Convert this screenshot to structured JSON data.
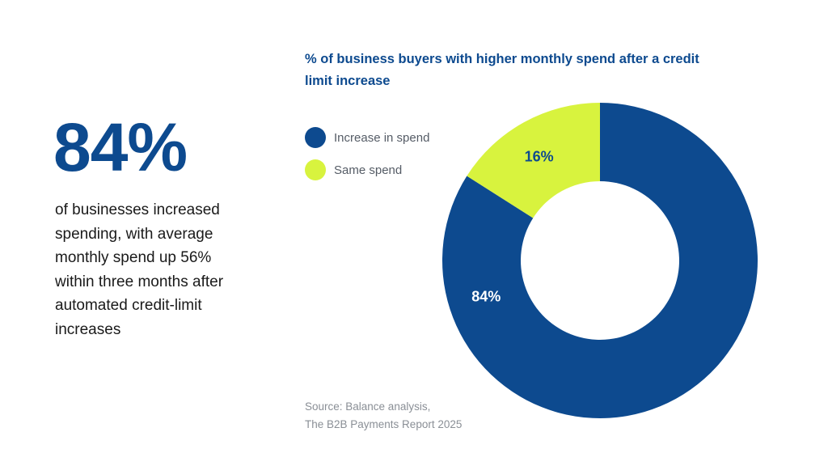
{
  "headline": {
    "stat": "84%",
    "description": "of businesses increased spending, with average monthly spend up 56% within three months after automated credit-limit increases"
  },
  "source": {
    "line1": "Source: Balance analysis,",
    "line2": "The B2B Payments Report 2025"
  },
  "colors": {
    "primary": "#0d4a8f",
    "accent": "#d8f33e",
    "text": "#1a1a1a",
    "muted": "#8a8f96"
  },
  "chart_data": {
    "type": "pie",
    "variant": "donut",
    "title": "% of business buyers with higher monthly spend after a credit limit increase",
    "categories": [
      "Increase in spend",
      "Same spend"
    ],
    "values": [
      84,
      16
    ],
    "unit": "%",
    "data_labels": [
      "84%",
      "16%"
    ],
    "colors": [
      "#0d4a8f",
      "#d8f33e"
    ],
    "label_colors": [
      "#ffffff",
      "#0d4a8f"
    ],
    "legend_placement": "top-left"
  }
}
